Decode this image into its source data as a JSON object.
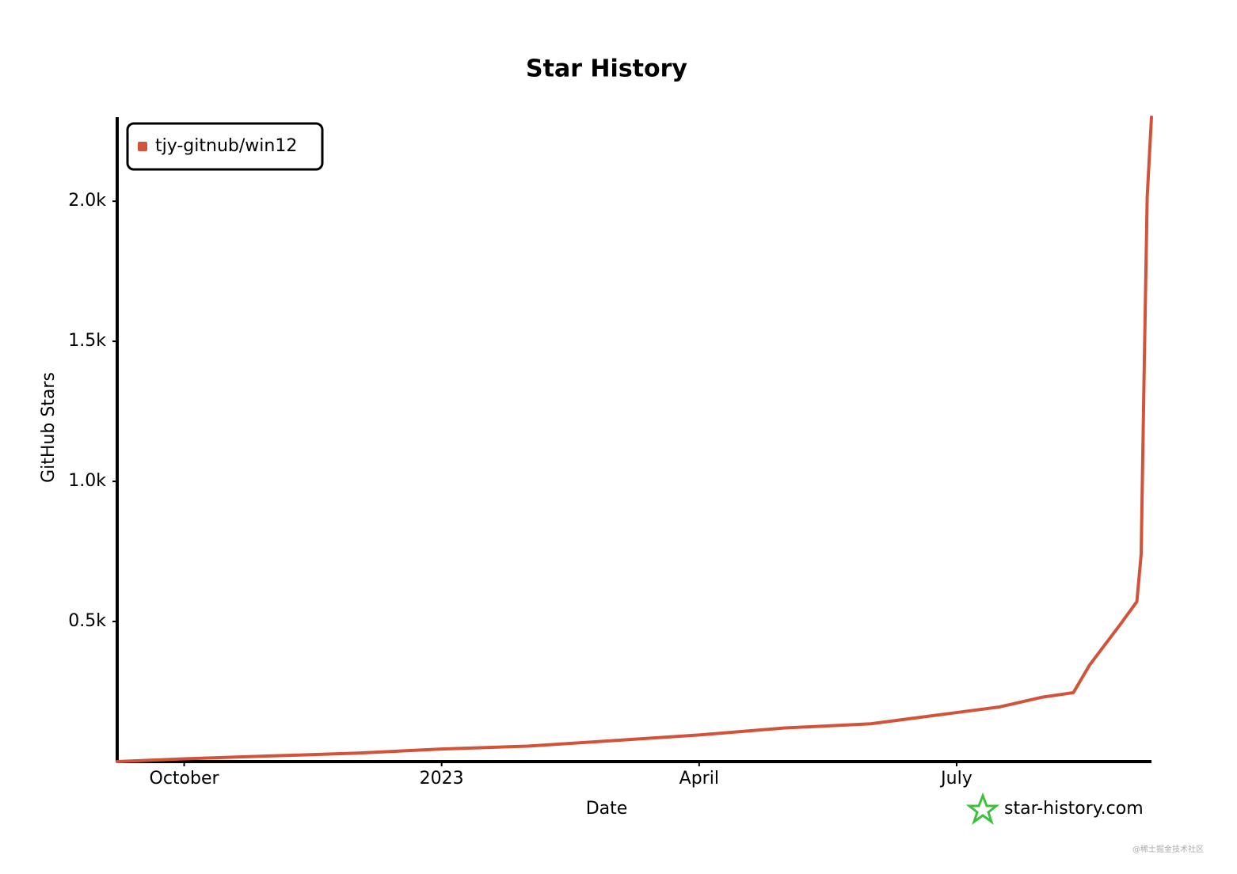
{
  "chart_data": {
    "type": "line",
    "title": "Star History",
    "xlabel": "Date",
    "ylabel": "GitHub Stars",
    "x": [
      -0.78,
      0,
      1,
      2,
      3,
      4,
      5,
      6,
      7,
      8,
      9,
      9.5,
      10,
      10.36,
      10.55,
      10.9,
      11.1,
      11.15,
      11.18,
      11.22,
      11.27
    ],
    "series": [
      {
        "name": "tjy-gitnub/win12",
        "color": "#d2533a",
        "values": [
          0,
          10,
          20,
          30,
          45,
          55,
          75,
          95,
          120,
          135,
          175,
          195,
          230,
          246,
          345,
          487,
          571,
          741,
          1307,
          2014,
          2300
        ]
      }
    ],
    "xlim": [
      -0.78,
      11.27
    ],
    "xticks": [
      {
        "value": 0,
        "label": "October"
      },
      {
        "value": 3,
        "label": "2023"
      },
      {
        "value": 6,
        "label": "April"
      },
      {
        "value": 9,
        "label": "July"
      }
    ],
    "ylim": [
      0,
      2300
    ],
    "yticks": [
      {
        "value": 500,
        "label": "0.5k"
      },
      {
        "value": 1000,
        "label": "1.0k"
      },
      {
        "value": 1500,
        "label": "1.5k"
      },
      {
        "value": 2000,
        "label": "2.0k"
      }
    ],
    "legend": "top-left",
    "watermark": "star-history.com",
    "credit": "@稀土掘金技术社区"
  }
}
